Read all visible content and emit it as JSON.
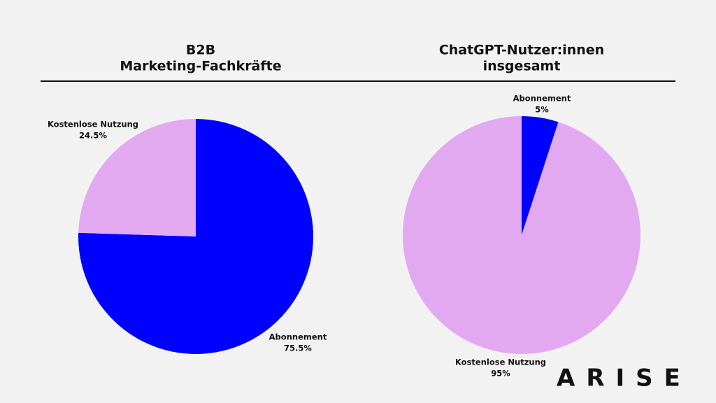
{
  "chart_data": [
    {
      "type": "pie",
      "title": [
        "B2B",
        "Marketing-Fachkräfte"
      ],
      "categories": [
        "Abonnement",
        "Kostenlose Nutzung"
      ],
      "values": [
        75.5,
        24.5
      ],
      "value_labels": [
        "75.5%",
        "24.5%"
      ],
      "colors": [
        "#0000ff",
        "#e2a9f1"
      ]
    },
    {
      "type": "pie",
      "title": [
        "ChatGPT-Nutzer:innen",
        "insgesamt"
      ],
      "categories": [
        "Abonnement",
        "Kostenlose Nutzung"
      ],
      "values": [
        5,
        95
      ],
      "value_labels": [
        "5%",
        "95%"
      ],
      "colors": [
        "#0000ff",
        "#e2a9f1"
      ]
    }
  ],
  "logo": "ARISE"
}
